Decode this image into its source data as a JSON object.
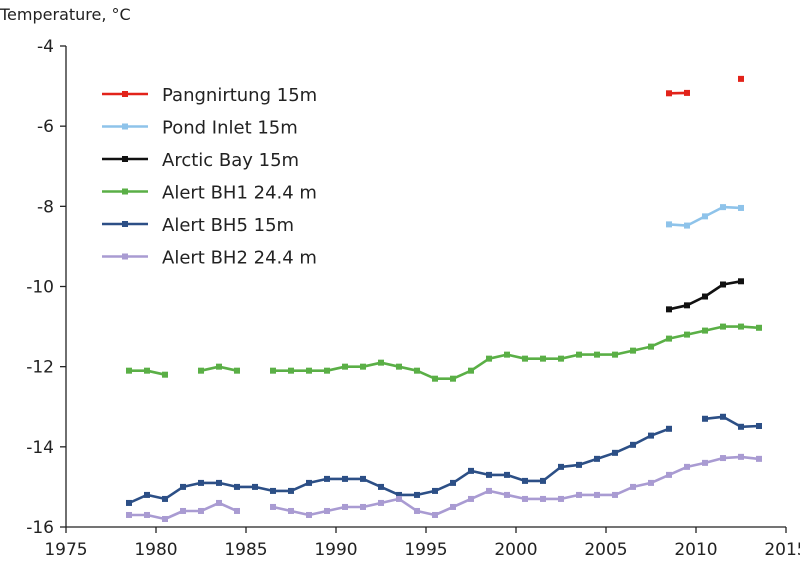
{
  "chart_data": {
    "type": "line",
    "title": "",
    "xlabel": "",
    "ylabel": "Temperature, °C",
    "xlim": [
      1975,
      2015
    ],
    "ylim": [
      -16,
      -4
    ],
    "xticks": [
      1975,
      1980,
      1985,
      1990,
      1995,
      2000,
      2005,
      2010,
      2015
    ],
    "yticks": [
      -4,
      -6,
      -8,
      -10,
      -12,
      -14,
      -16
    ],
    "xtick_labels": [
      "1975",
      "1980",
      "1985",
      "1990",
      "1995",
      "2000",
      "2005",
      "2010",
      "2015"
    ],
    "ytick_labels": [
      "-4",
      "-6",
      "-8",
      "-10",
      "-12",
      "-14",
      "-16"
    ],
    "grid": false,
    "legend_position": "top-left",
    "series": [
      {
        "name": "Pangnirtung 15m",
        "color": "#e2231a",
        "segments": [
          [
            [
              2008.5,
              -5.18
            ],
            [
              2009.5,
              -5.17
            ]
          ],
          [
            [
              2012.5,
              -4.82
            ]
          ]
        ]
      },
      {
        "name": "Pond Inlet 15m",
        "color": "#8ec3ea",
        "segments": [
          [
            [
              2008.5,
              -8.45
            ],
            [
              2009.5,
              -8.48
            ],
            [
              2010.5,
              -8.25
            ],
            [
              2011.5,
              -8.02
            ],
            [
              2012.5,
              -8.04
            ]
          ]
        ]
      },
      {
        "name": "Arctic Bay 15m",
        "color": "#111111",
        "segments": [
          [
            [
              2008.5,
              -10.57
            ],
            [
              2009.5,
              -10.47
            ],
            [
              2010.5,
              -10.25
            ],
            [
              2011.5,
              -9.95
            ],
            [
              2012.5,
              -9.87
            ]
          ]
        ]
      },
      {
        "name": "Alert BH1 24.4 m",
        "color": "#5aaf46",
        "segments": [
          [
            [
              1978.5,
              -12.1
            ],
            [
              1979.5,
              -12.1
            ],
            [
              1980.5,
              -12.2
            ]
          ],
          [
            [
              1982.5,
              -12.1
            ],
            [
              1983.5,
              -12.0
            ],
            [
              1984.5,
              -12.1
            ]
          ],
          [
            [
              1986.5,
              -12.1
            ],
            [
              1987.5,
              -12.1
            ],
            [
              1988.5,
              -12.1
            ],
            [
              1989.5,
              -12.1
            ],
            [
              1990.5,
              -12.0
            ],
            [
              1991.5,
              -12.0
            ],
            [
              1992.5,
              -11.9
            ],
            [
              1993.5,
              -12.0
            ],
            [
              1994.5,
              -12.1
            ],
            [
              1995.5,
              -12.3
            ],
            [
              1996.5,
              -12.3
            ],
            [
              1997.5,
              -12.1
            ],
            [
              1998.5,
              -11.8
            ],
            [
              1999.5,
              -11.7
            ],
            [
              2000.5,
              -11.8
            ],
            [
              2001.5,
              -11.8
            ],
            [
              2002.5,
              -11.8
            ],
            [
              2003.5,
              -11.7
            ],
            [
              2004.5,
              -11.7
            ],
            [
              2005.5,
              -11.7
            ],
            [
              2006.5,
              -11.6
            ],
            [
              2007.5,
              -11.5
            ],
            [
              2008.5,
              -11.3
            ],
            [
              2009.5,
              -11.2
            ],
            [
              2010.5,
              -11.1
            ],
            [
              2011.5,
              -11.0
            ],
            [
              2012.5,
              -11.0
            ],
            [
              2013.5,
              -11.03
            ]
          ]
        ]
      },
      {
        "name": "Alert BH5 15m",
        "color": "#2c4f86",
        "segments": [
          [
            [
              1978.5,
              -15.4
            ],
            [
              1979.5,
              -15.2
            ],
            [
              1980.5,
              -15.3
            ],
            [
              1981.5,
              -15.0
            ],
            [
              1982.5,
              -14.9
            ],
            [
              1983.5,
              -14.9
            ],
            [
              1984.5,
              -15.0
            ],
            [
              1985.5,
              -15.0
            ],
            [
              1986.5,
              -15.1
            ],
            [
              1987.5,
              -15.1
            ],
            [
              1988.5,
              -14.9
            ],
            [
              1989.5,
              -14.8
            ],
            [
              1990.5,
              -14.8
            ],
            [
              1991.5,
              -14.8
            ],
            [
              1992.5,
              -15.0
            ],
            [
              1993.5,
              -15.2
            ],
            [
              1994.5,
              -15.2
            ],
            [
              1995.5,
              -15.1
            ],
            [
              1996.5,
              -14.9
            ],
            [
              1997.5,
              -14.6
            ],
            [
              1998.5,
              -14.7
            ],
            [
              1999.5,
              -14.7
            ],
            [
              2000.5,
              -14.85
            ],
            [
              2001.5,
              -14.85
            ],
            [
              2002.5,
              -14.5
            ],
            [
              2003.5,
              -14.45
            ],
            [
              2004.5,
              -14.3
            ],
            [
              2005.5,
              -14.15
            ],
            [
              2006.5,
              -13.95
            ],
            [
              2007.5,
              -13.72
            ],
            [
              2008.5,
              -13.55
            ]
          ],
          [
            [
              2010.5,
              -13.3
            ],
            [
              2011.5,
              -13.25
            ],
            [
              2012.5,
              -13.5
            ],
            [
              2013.5,
              -13.48
            ]
          ]
        ]
      },
      {
        "name": "Alert BH2 24.4 m",
        "color": "#a99bd2",
        "segments": [
          [
            [
              1978.5,
              -15.7
            ],
            [
              1979.5,
              -15.7
            ],
            [
              1980.5,
              -15.8
            ],
            [
              1981.5,
              -15.6
            ],
            [
              1982.5,
              -15.6
            ],
            [
              1983.5,
              -15.4
            ],
            [
              1984.5,
              -15.6
            ]
          ],
          [
            [
              1986.5,
              -15.5
            ],
            [
              1987.5,
              -15.6
            ],
            [
              1988.5,
              -15.7
            ],
            [
              1989.5,
              -15.6
            ],
            [
              1990.5,
              -15.5
            ],
            [
              1991.5,
              -15.5
            ],
            [
              1992.5,
              -15.4
            ],
            [
              1993.5,
              -15.3
            ],
            [
              1994.5,
              -15.6
            ],
            [
              1995.5,
              -15.7
            ],
            [
              1996.5,
              -15.5
            ],
            [
              1997.5,
              -15.3
            ],
            [
              1998.5,
              -15.1
            ],
            [
              1999.5,
              -15.2
            ],
            [
              2000.5,
              -15.3
            ],
            [
              2001.5,
              -15.3
            ],
            [
              2002.5,
              -15.3
            ],
            [
              2003.5,
              -15.2
            ],
            [
              2004.5,
              -15.2
            ],
            [
              2005.5,
              -15.2
            ],
            [
              2006.5,
              -15.0
            ],
            [
              2007.5,
              -14.9
            ],
            [
              2008.5,
              -14.7
            ],
            [
              2009.5,
              -14.5
            ],
            [
              2010.5,
              -14.4
            ],
            [
              2011.5,
              -14.28
            ],
            [
              2012.5,
              -14.25
            ],
            [
              2013.5,
              -14.3
            ]
          ]
        ]
      }
    ]
  }
}
